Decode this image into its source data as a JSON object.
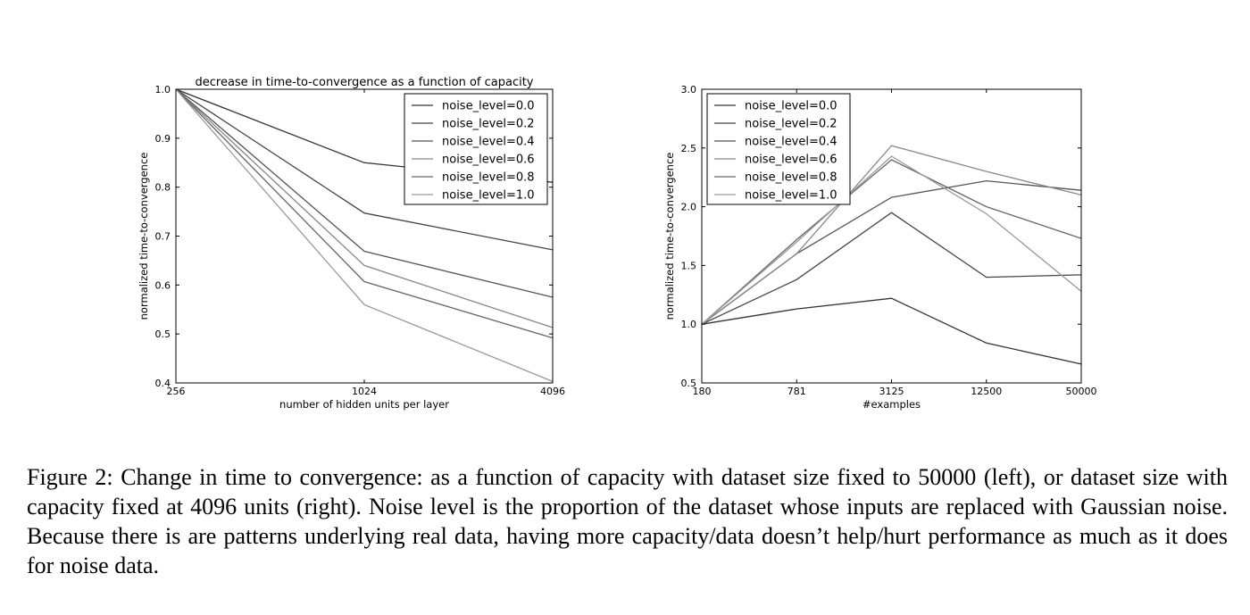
{
  "chart_data": [
    {
      "type": "line",
      "title": "decrease in time-to-convergence as a function of capacity",
      "xlabel": "number of hidden units per layer",
      "ylabel": "normalized time-to-convergence",
      "categories": [
        "256",
        "1024",
        "4096"
      ],
      "yticks": [
        "0.4",
        "0.5",
        "0.6",
        "0.7",
        "0.8",
        "0.9",
        "1.0"
      ],
      "ylim": [
        0.4,
        1.0
      ],
      "grid": false,
      "legend_position": "top-right",
      "series": [
        {
          "name": "noise_level=0.0",
          "values": [
            1.0,
            0.85,
            0.81
          ],
          "color": "#333333"
        },
        {
          "name": "noise_level=0.2",
          "values": [
            1.0,
            0.747,
            0.672
          ],
          "color": "#444444"
        },
        {
          "name": "noise_level=0.4",
          "values": [
            1.0,
            0.669,
            0.575
          ],
          "color": "#555555"
        },
        {
          "name": "noise_level=0.6",
          "values": [
            1.0,
            0.64,
            0.513
          ],
          "color": "#888888"
        },
        {
          "name": "noise_level=0.8",
          "values": [
            1.0,
            0.607,
            0.492
          ],
          "color": "#666666"
        },
        {
          "name": "noise_level=1.0",
          "values": [
            1.0,
            0.56,
            0.403
          ],
          "color": "#999999"
        }
      ]
    },
    {
      "type": "line",
      "title": "",
      "xlabel": "#examples",
      "ylabel": "normalized time-to-convergence",
      "categories": [
        "180",
        "781",
        "3125",
        "12500",
        "50000"
      ],
      "yticks": [
        "0.5",
        "1.0",
        "1.5",
        "2.0",
        "2.5",
        "3.0"
      ],
      "ylim": [
        0.5,
        3.0
      ],
      "grid": false,
      "legend_position": "top-left",
      "series": [
        {
          "name": "noise_level=0.0",
          "values": [
            1.0,
            1.13,
            1.22,
            0.84,
            0.66
          ],
          "color": "#333333"
        },
        {
          "name": "noise_level=0.2",
          "values": [
            1.0,
            1.38,
            1.95,
            1.4,
            1.42
          ],
          "color": "#444444"
        },
        {
          "name": "noise_level=0.4",
          "values": [
            1.0,
            1.6,
            2.08,
            2.22,
            2.14
          ],
          "color": "#555555"
        },
        {
          "name": "noise_level=0.6",
          "values": [
            1.0,
            1.6,
            2.52,
            2.3,
            2.1
          ],
          "color": "#888888"
        },
        {
          "name": "noise_level=0.8",
          "values": [
            1.0,
            1.72,
            2.4,
            2.0,
            1.73
          ],
          "color": "#666666"
        },
        {
          "name": "noise_level=1.0",
          "values": [
            1.0,
            1.7,
            2.43,
            1.94,
            1.28
          ],
          "color": "#999999"
        }
      ]
    }
  ],
  "caption": "Figure 2: Change in time to convergence: as a function of capacity with dataset size fixed to 50000 (left), or dataset size with capacity fixed at 4096 units (right). Noise level is the proportion of the dataset whose inputs are replaced with Gaussian noise. Because there is are patterns underlying real data, having more capacity/data doesn’t help/hurt performance as much as it does for noise data."
}
